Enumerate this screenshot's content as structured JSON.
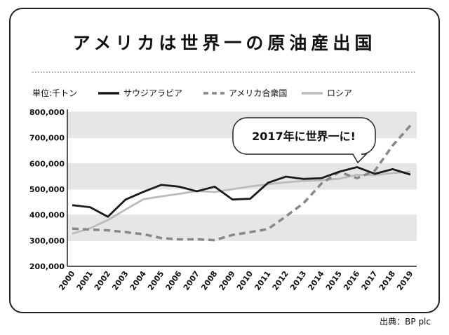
{
  "chart_data": {
    "type": "line",
    "title": "アメリカは世界一の原油産出国",
    "unit_label": "単位:千トン",
    "source": "出典：BP plc",
    "annotation": "2017年に世界一に!",
    "categories": [
      "2000",
      "2001",
      "2002",
      "2003",
      "2004",
      "2005",
      "2006",
      "2007",
      "2008",
      "2009",
      "2010",
      "2011",
      "2012",
      "2013",
      "2014",
      "2015",
      "2016",
      "2017",
      "2018",
      "2019"
    ],
    "series": [
      {
        "name": "サウジアラビア",
        "color": "#1a1a1a",
        "style": "solid",
        "values": [
          438000,
          430000,
          393000,
          460000,
          490000,
          517000,
          510000,
          492000,
          510000,
          460000,
          463000,
          525000,
          549000,
          540000,
          543000,
          568000,
          586000,
          560000,
          578000,
          557000
        ]
      },
      {
        "name": "アメリカ合衆国",
        "color": "#888888",
        "style": "dashed",
        "values": [
          347000,
          343000,
          340000,
          333000,
          325000,
          310000,
          305000,
          305000,
          302000,
          322000,
          333000,
          345000,
          394000,
          446000,
          522000,
          567000,
          543000,
          572000,
          670000,
          748000
        ]
      },
      {
        "name": "ロシア",
        "color": "#bbbbbb",
        "style": "solid",
        "values": [
          327000,
          348000,
          380000,
          421000,
          461000,
          472000,
          482000,
          493000,
          489000,
          500000,
          511000,
          519000,
          527000,
          532000,
          535000,
          541000,
          556000,
          555000,
          563000,
          568000
        ]
      }
    ],
    "ylim": [
      200000,
      800000
    ],
    "yticks": [
      {
        "value": 200000,
        "label": "200,000"
      },
      {
        "value": 300000,
        "label": "300,000"
      },
      {
        "value": 400000,
        "label": "400,000"
      },
      {
        "value": 500000,
        "label": "500,000"
      },
      {
        "value": 600000,
        "label": "600,000"
      },
      {
        "value": 700000,
        "label": "700,000"
      },
      {
        "value": 800000,
        "label": "800,000"
      }
    ],
    "grid": true
  }
}
